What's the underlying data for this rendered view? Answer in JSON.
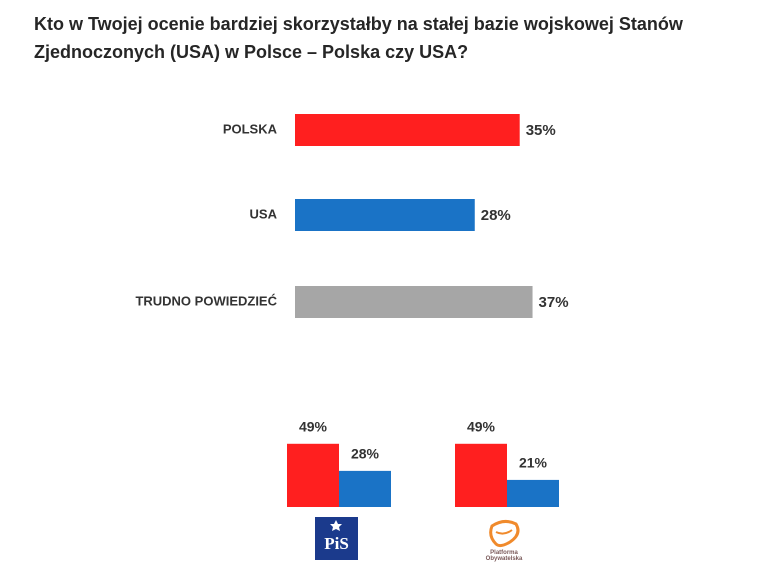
{
  "chart_data": [
    {
      "type": "bar",
      "orientation": "horizontal",
      "title": "Kto w Twojej ocenie bardziej skorzystałby na stałej bazie wojskowej Stanów Zjednoczonych (USA) w Polsce – Polska czy USA?",
      "categories": [
        "POLSKA",
        "USA",
        "TRUDNO POWIEDZIEĆ"
      ],
      "values": [
        35,
        28,
        37
      ],
      "value_labels": [
        "35%",
        "28%",
        "37%"
      ],
      "colors": [
        "#ff1f1f",
        "#1a73c6",
        "#a6a6a6"
      ]
    },
    {
      "type": "bar",
      "orientation": "vertical",
      "categories": [
        "PiS",
        "Platforma Obywatelska"
      ],
      "series": [
        {
          "color": "#ff1f1f",
          "values": [
            49,
            49
          ],
          "value_labels": [
            "49%",
            "49%"
          ]
        },
        {
          "color": "#1a73c6",
          "values": [
            28,
            21
          ],
          "value_labels": [
            "28%",
            "21%"
          ]
        }
      ]
    }
  ]
}
